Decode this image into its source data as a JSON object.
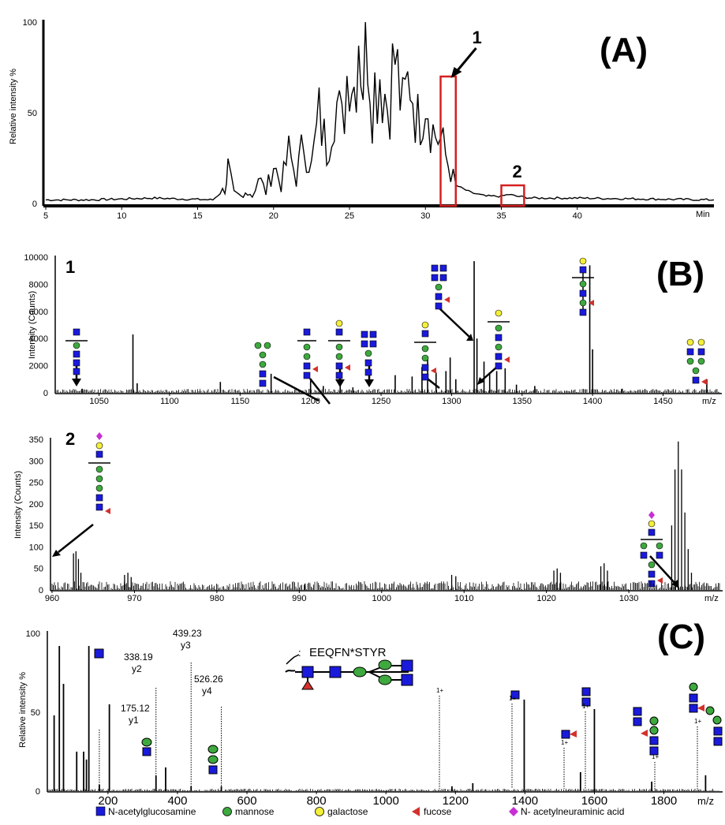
{
  "figure": {
    "panel_labels": [
      "(A)",
      "(B)",
      "(C)"
    ],
    "legend": [
      {
        "label": "N-acetylglucosamine",
        "shape": "square",
        "color": "#1a1adc"
      },
      {
        "label": "mannose",
        "shape": "circle",
        "color": "#3ea93e"
      },
      {
        "label": "galactose",
        "shape": "circle",
        "color": "#f4ef38"
      },
      {
        "label": "fucose",
        "shape": "triangle",
        "color": "#d2312c"
      },
      {
        "label": "N- acetylneuraminic  acid",
        "shape": "diamond",
        "color": "#c62fd4"
      }
    ],
    "colors": {
      "highlight_box": "#d42020",
      "trace": "#000000"
    }
  },
  "chart_data": [
    {
      "type": "line",
      "panel": "(A)",
      "ylabel": "Relative intensity %",
      "xunit": "Min",
      "xlim": [
        5,
        49
      ],
      "ylim": [
        0,
        100
      ],
      "xticks": [
        5,
        10,
        15,
        20,
        25,
        30,
        35,
        40
      ],
      "yticks": [
        0,
        50,
        100
      ],
      "series": [
        {
          "x": [
            5,
            8,
            12,
            16,
            16.8,
            17.0,
            17.4,
            18.0,
            18.3,
            18.6,
            19.0,
            19.5,
            20.0,
            20.5,
            21,
            21.5,
            22,
            22.5,
            23,
            23.5,
            24,
            24.5,
            25,
            25.3,
            25.6,
            25.9,
            26.2,
            26.5,
            27,
            27.5,
            28,
            28.5,
            29,
            29.5,
            30,
            30.5,
            31,
            31.5,
            32,
            33,
            34,
            35,
            35.5,
            36,
            37,
            40,
            49
          ],
          "y": [
            2,
            2,
            3,
            2,
            8,
            20,
            5,
            3,
            8,
            4,
            15,
            6,
            22,
            10,
            28,
            14,
            35,
            20,
            48,
            30,
            60,
            42,
            85,
            65,
            100,
            70,
            98,
            60,
            75,
            55,
            80,
            50,
            72,
            45,
            65,
            40,
            35,
            22,
            10,
            6,
            4,
            4,
            5,
            4,
            3,
            3,
            2
          ]
        }
      ],
      "annotations": [
        {
          "label": "1",
          "x_range": [
            31.0,
            32.0
          ],
          "y_top": 70
        },
        {
          "label": "2",
          "x_range": [
            35.0,
            36.5
          ],
          "y_top": 10
        }
      ]
    },
    {
      "type": "bar",
      "panel": "(B) 1",
      "ylabel": "Intensity (Counts)",
      "xunit": "m/z",
      "xlim": [
        1020,
        1490
      ],
      "ylim": [
        0,
        10000
      ],
      "xticks": [
        1050,
        1100,
        1150,
        1200,
        1250,
        1300,
        1350,
        1400,
        1450
      ],
      "yticks": [
        0,
        2000,
        4000,
        6000,
        8000,
        10000
      ],
      "peaks": [
        {
          "x": 1038,
          "y": 300
        },
        {
          "x": 1074,
          "y": 4300
        },
        {
          "x": 1077,
          "y": 700
        },
        {
          "x": 1136,
          "y": 800
        },
        {
          "x": 1172,
          "y": 1400
        },
        {
          "x": 1200,
          "y": 900
        },
        {
          "x": 1209,
          "y": 500
        },
        {
          "x": 1221,
          "y": 700
        },
        {
          "x": 1230,
          "y": 400
        },
        {
          "x": 1260,
          "y": 1300
        },
        {
          "x": 1272,
          "y": 1200
        },
        {
          "x": 1279,
          "y": 1900
        },
        {
          "x": 1283,
          "y": 2600
        },
        {
          "x": 1289,
          "y": 1500
        },
        {
          "x": 1296,
          "y": 1600
        },
        {
          "x": 1299,
          "y": 2600
        },
        {
          "x": 1303,
          "y": 1000
        },
        {
          "x": 1316,
          "y": 9700
        },
        {
          "x": 1318,
          "y": 4000
        },
        {
          "x": 1323,
          "y": 2300
        },
        {
          "x": 1327,
          "y": 1500
        },
        {
          "x": 1332,
          "y": 1600
        },
        {
          "x": 1338,
          "y": 1800
        },
        {
          "x": 1346,
          "y": 600
        },
        {
          "x": 1359,
          "y": 500
        },
        {
          "x": 1398,
          "y": 9400
        },
        {
          "x": 1400,
          "y": 3200
        },
        {
          "x": 1421,
          "y": 300
        },
        {
          "x": 1481,
          "y": 1000
        }
      ],
      "annotations": [
        {
          "label": "1"
        }
      ]
    },
    {
      "type": "bar",
      "panel": "(B) 2",
      "ylabel": "Intensity (Counts)",
      "xunit": "m/z",
      "xlim": [
        960,
        1041
      ],
      "ylim": [
        0,
        350
      ],
      "xticks": [
        960,
        970,
        980,
        990,
        1000,
        1010,
        1020,
        1030
      ],
      "yticks": [
        0,
        50,
        100,
        150,
        200,
        250,
        300,
        350
      ],
      "peaks": [
        {
          "x": 962.6,
          "y": 85
        },
        {
          "x": 962.9,
          "y": 90
        },
        {
          "x": 963.2,
          "y": 72
        },
        {
          "x": 963.5,
          "y": 40
        },
        {
          "x": 968.8,
          "y": 35
        },
        {
          "x": 969.2,
          "y": 40
        },
        {
          "x": 969.6,
          "y": 30
        },
        {
          "x": 990.7,
          "y": 15
        },
        {
          "x": 1008.5,
          "y": 35
        },
        {
          "x": 1009,
          "y": 32
        },
        {
          "x": 1020.9,
          "y": 45
        },
        {
          "x": 1021.3,
          "y": 50
        },
        {
          "x": 1021.7,
          "y": 40
        },
        {
          "x": 1026.6,
          "y": 55
        },
        {
          "x": 1027,
          "y": 62
        },
        {
          "x": 1027.4,
          "y": 45
        },
        {
          "x": 1035.2,
          "y": 150
        },
        {
          "x": 1035.6,
          "y": 280
        },
        {
          "x": 1036.0,
          "y": 345
        },
        {
          "x": 1036.4,
          "y": 280
        },
        {
          "x": 1036.8,
          "y": 180
        },
        {
          "x": 1037.2,
          "y": 95
        },
        {
          "x": 1037.6,
          "y": 40
        }
      ],
      "annotations": [
        {
          "label": "2"
        }
      ]
    },
    {
      "type": "bar",
      "panel": "(C)",
      "ylabel": "Relative intensity %",
      "xunit": "m/z",
      "xlim": [
        30,
        1960
      ],
      "ylim": [
        0,
        100
      ],
      "xticks": [
        200,
        400,
        600,
        800,
        1000,
        1200,
        1400,
        1600,
        1800
      ],
      "yticks": [
        0,
        50,
        100
      ],
      "peptide_label": "EEQFN*STYR",
      "peptide_prefix": ":",
      "peaks": [
        {
          "x": 45,
          "y": 48
        },
        {
          "x": 60,
          "y": 92
        },
        {
          "x": 72,
          "y": 68
        },
        {
          "x": 110,
          "y": 25
        },
        {
          "x": 130,
          "y": 25
        },
        {
          "x": 138,
          "y": 20
        },
        {
          "x": 145,
          "y": 92
        },
        {
          "x": 175.12,
          "y": 4
        },
        {
          "x": 204,
          "y": 55
        },
        {
          "x": 338.19,
          "y": 10
        },
        {
          "x": 366,
          "y": 15
        },
        {
          "x": 439.23,
          "y": 3
        },
        {
          "x": 526.26,
          "y": 3
        },
        {
          "x": 1190,
          "y": 3
        },
        {
          "x": 1250,
          "y": 5
        },
        {
          "x": 1398,
          "y": 58
        },
        {
          "x": 1560,
          "y": 12
        },
        {
          "x": 1600,
          "y": 52
        },
        {
          "x": 1765,
          "y": 6
        },
        {
          "x": 1920,
          "y": 10
        }
      ],
      "fragment_labels": [
        {
          "x": 175.12,
          "mz": "175.12",
          "ion": "y1"
        },
        {
          "x": 338.19,
          "mz": "338.19",
          "ion": "y2"
        },
        {
          "x": 439.23,
          "mz": "439.23",
          "ion": "y3"
        },
        {
          "x": 526.26,
          "mz": "526.26",
          "ion": "y4"
        }
      ],
      "charge_labels": [
        "1+",
        "1+",
        "1+",
        "1+",
        "1+",
        "1+"
      ]
    }
  ]
}
